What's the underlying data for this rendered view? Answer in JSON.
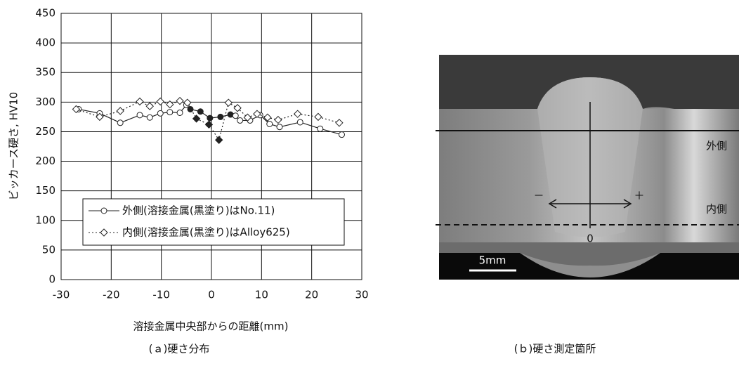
{
  "chart_data": {
    "type": "line",
    "xlabel": "溶接金属中央部からの距離(mm)",
    "ylabel": "ビッカース硬さ, HV10",
    "caption": "(ａ)硬さ分布",
    "xlim": [
      -30,
      30
    ],
    "xticks": [
      -30,
      -20,
      -10,
      0,
      10,
      20,
      30
    ],
    "ylim": [
      0,
      450
    ],
    "yticks": [
      0,
      50,
      100,
      150,
      200,
      250,
      300,
      350,
      400,
      450
    ],
    "grid": true,
    "series": [
      {
        "name": "外側(溶接金属(黒塗り)はNo.11)",
        "color": "#222222",
        "marker": "circle",
        "dash": "solid",
        "x": [
          -26.5,
          -22.3,
          -18.2,
          -14.3,
          -12.3,
          -10.2,
          -8.3,
          -6.3,
          -5,
          -4.2,
          -2.2,
          -0.3,
          1.8,
          3.8,
          4.8,
          5.7,
          7.7,
          9.7,
          11.6,
          13.6,
          17.7,
          21.7,
          26
        ],
        "values": [
          288,
          281,
          265,
          278,
          274,
          281,
          283,
          282,
          295,
          288,
          284,
          273,
          275,
          279,
          277,
          269,
          269,
          278,
          263,
          258,
          266,
          255,
          245
        ],
        "filled": [
          false,
          false,
          false,
          false,
          false,
          false,
          false,
          false,
          false,
          true,
          true,
          true,
          true,
          true,
          false,
          false,
          false,
          false,
          false,
          false,
          false,
          false,
          false
        ]
      },
      {
        "name": "内側(溶接金属(黒塗り)はAlloy625)",
        "color": "#222222",
        "marker": "diamond",
        "dash": "dotted",
        "x": [
          -27,
          -22.3,
          -18.2,
          -14.3,
          -12.3,
          -10.2,
          -8.3,
          -6.3,
          -4.8,
          -3,
          -0.5,
          1.5,
          3.4,
          5.2,
          7.2,
          9.1,
          11.2,
          13.3,
          17.2,
          21.3,
          25.5
        ],
        "values": [
          288,
          275,
          285,
          301,
          293,
          301,
          296,
          302,
          299,
          272,
          262,
          236,
          299,
          290,
          274,
          280,
          274,
          270,
          280,
          275,
          265
        ],
        "filled": [
          false,
          false,
          false,
          false,
          false,
          false,
          false,
          false,
          false,
          true,
          true,
          true,
          false,
          false,
          false,
          false,
          false,
          false,
          false,
          false,
          false
        ]
      }
    ]
  },
  "photo": {
    "caption": "(ｂ)硬さ測定箇所",
    "outer": "外側",
    "inner": "内側",
    "scale": "5mm",
    "origin": "0",
    "minus": "－",
    "plus": "＋"
  }
}
